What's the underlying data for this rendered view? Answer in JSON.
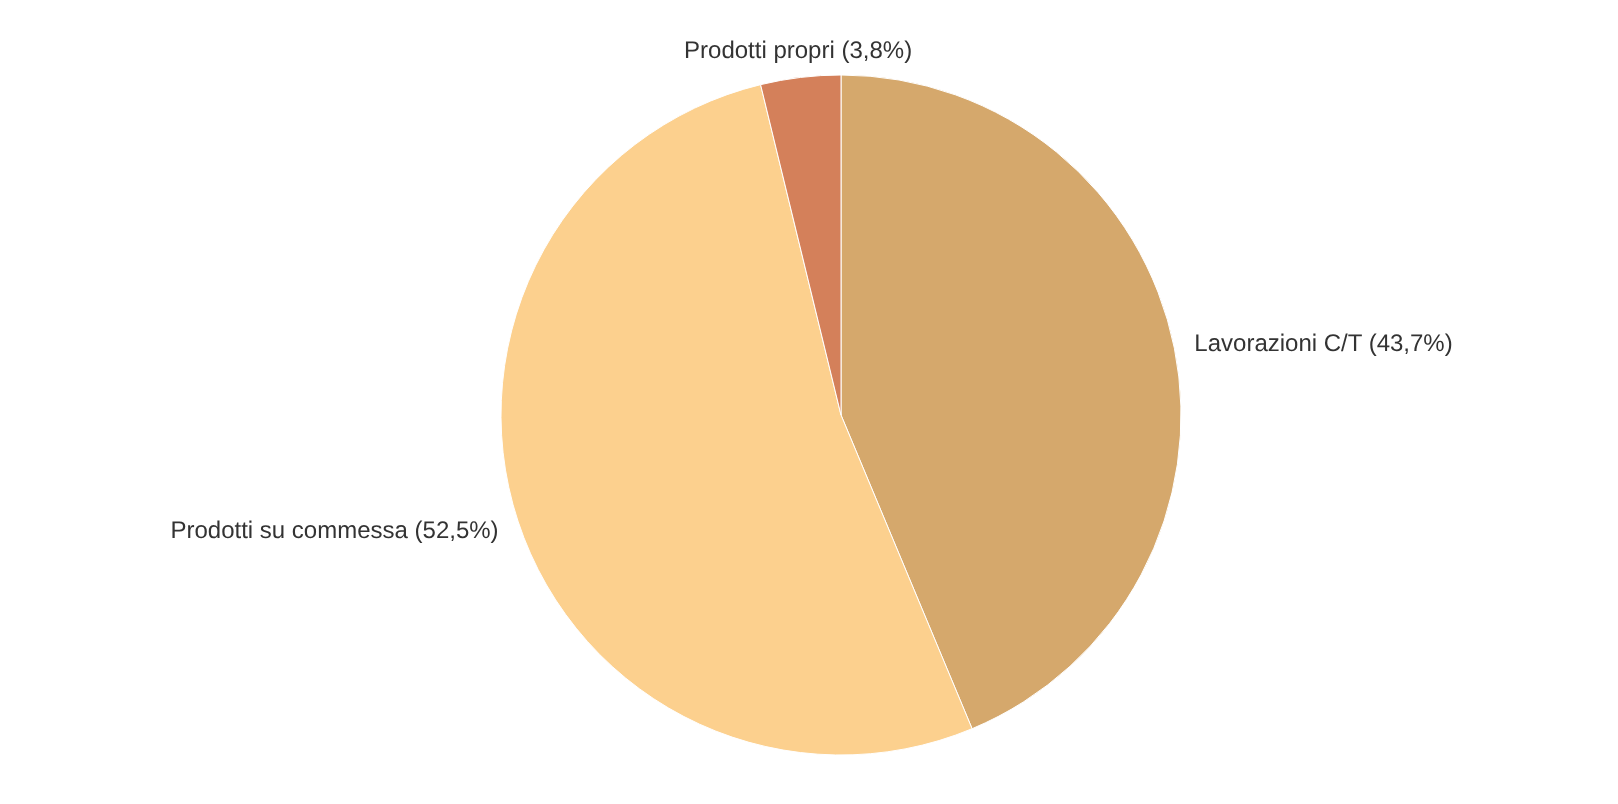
{
  "chart_data": {
    "type": "pie",
    "categories": [
      "Lavorazioni C/T (43,7%)",
      "Prodotti su commessa (52,5%)",
      "Prodotti propri (3,8%)"
    ],
    "values": [
      43.7,
      52.5,
      3.8
    ],
    "colors": [
      "#d5a86c",
      "#fcd08e",
      "#d4805a"
    ]
  }
}
